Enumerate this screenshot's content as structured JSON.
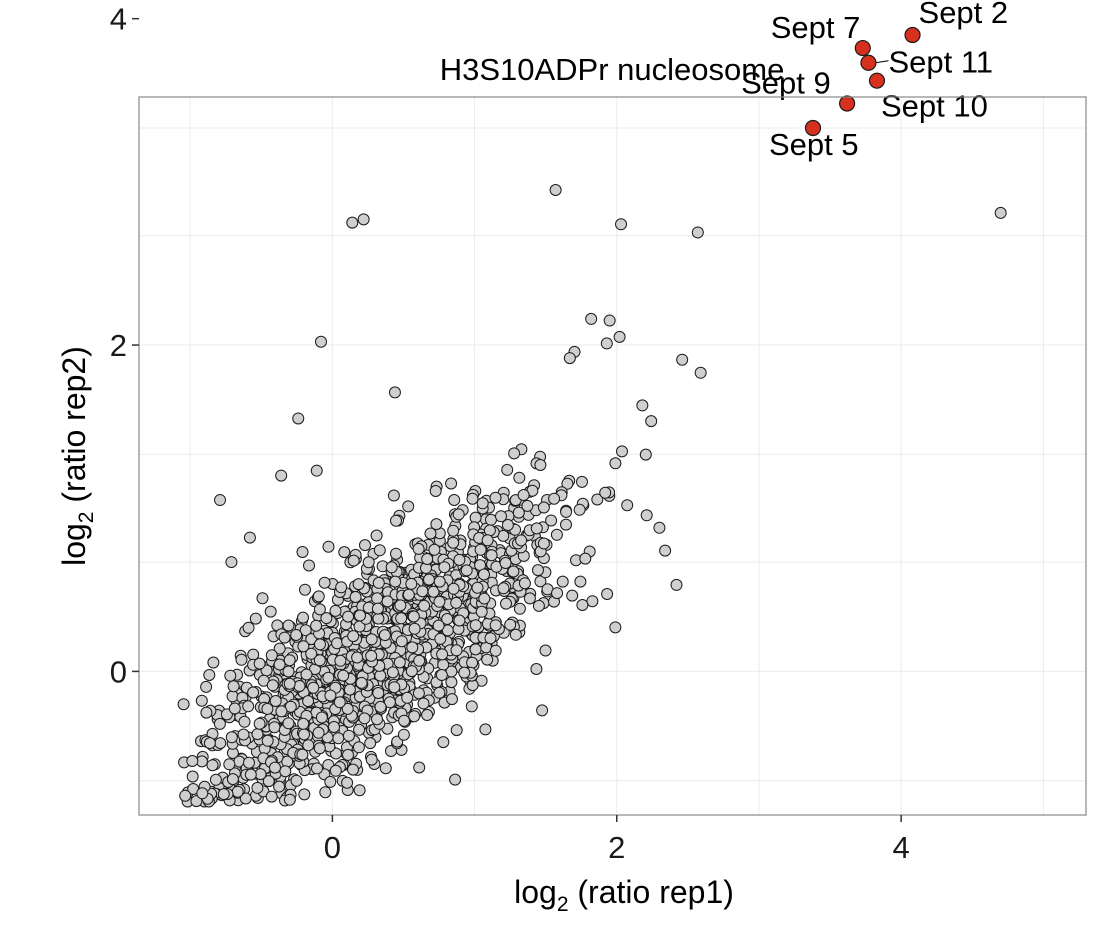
{
  "chart_data": {
    "type": "scatter",
    "title": "H3S10ADPr nucleosome",
    "xlabel": {
      "pre": "log",
      "sub": "2",
      "post": " (ratio rep1)"
    },
    "ylabel": {
      "pre": "log",
      "sub": "2",
      "post": " (ratio rep2)"
    },
    "xlim": [
      -1.36,
      5.3
    ],
    "ylim": [
      -0.88,
      3.52
    ],
    "x_ticks": [
      0,
      2,
      4
    ],
    "y_ticks": [
      0,
      2,
      4
    ],
    "x_tick_labels": [
      "0",
      "2",
      "4"
    ],
    "y_tick_labels": [
      "0",
      "2",
      "4"
    ],
    "grid": true,
    "colors": {
      "background_point": "#cfcfcf",
      "highlight_point": "#d6301f",
      "point_edge": "#1a1a1a",
      "grid": "#ebebeb",
      "frame": "#888888"
    },
    "highlighted": [
      {
        "label": "Sept 2",
        "x": 4.08,
        "y": 3.9
      },
      {
        "label": "Sept 7",
        "x": 3.73,
        "y": 3.82
      },
      {
        "label": "Sept 11",
        "x": 3.77,
        "y": 3.73
      },
      {
        "label": "Sept 9",
        "x": 3.62,
        "y": 3.48
      },
      {
        "label": "Sept 10",
        "x": 3.83,
        "y": 3.62
      },
      {
        "label": "Sept 5",
        "x": 3.38,
        "y": 3.33
      }
    ],
    "outliers": [
      [
        1.57,
        2.95
      ],
      [
        2.03,
        2.74
      ],
      [
        2.57,
        2.69
      ],
      [
        4.7,
        2.81
      ],
      [
        0.14,
        2.75
      ],
      [
        0.22,
        2.77
      ],
      [
        -0.08,
        2.02
      ],
      [
        0.44,
        1.71
      ],
      [
        -0.24,
        1.55
      ],
      [
        -0.79,
        1.05
      ],
      [
        -0.71,
        0.67
      ],
      [
        -0.58,
        0.82
      ],
      [
        -0.11,
        1.23
      ],
      [
        -0.36,
        1.2
      ],
      [
        2.59,
        1.83
      ],
      [
        2.46,
        1.91
      ],
      [
        1.93,
        2.01
      ],
      [
        2.02,
        2.05
      ],
      [
        1.67,
        1.92
      ],
      [
        2.34,
        0.74
      ],
      [
        2.42,
        0.53
      ],
      [
        2.3,
        0.88
      ],
      [
        1.99,
        0.27
      ],
      [
        2.18,
        1.63
      ],
      [
        1.62,
        0.55
      ],
      [
        1.58,
        0.48
      ],
      [
        1.95,
        2.15
      ],
      [
        1.82,
        2.16
      ]
    ],
    "cloud": {
      "count": 1500,
      "x_mean": 0.3,
      "x_sd": 0.6,
      "slope": 0.55,
      "intercept": -0.05,
      "residual_sd": 0.3
    }
  }
}
